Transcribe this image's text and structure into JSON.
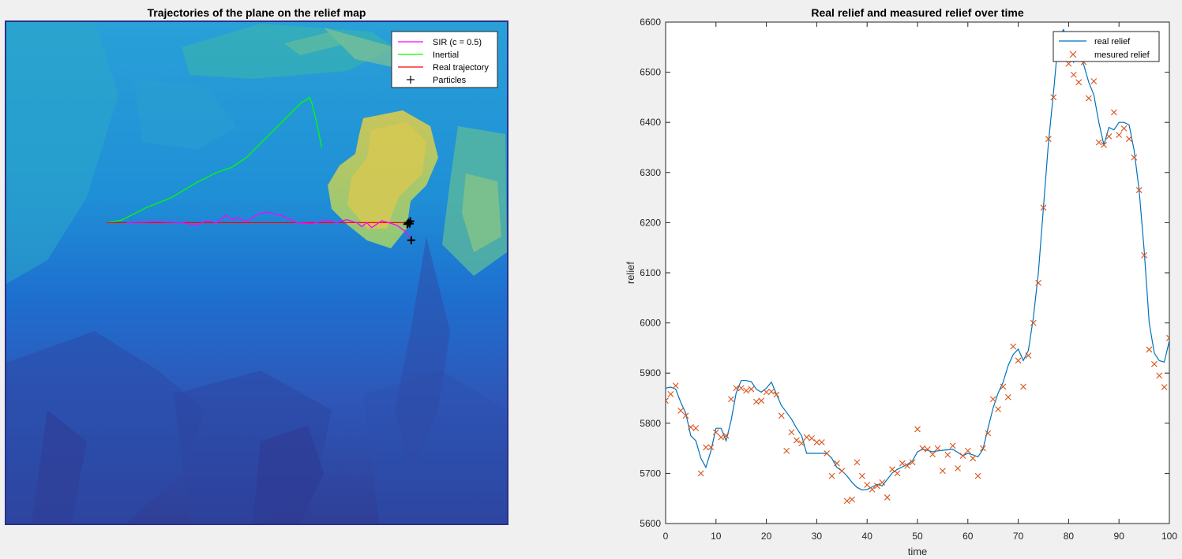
{
  "colors": {
    "figure_bg": "#f0f0f0",
    "sir": "#ff00ff",
    "inertial": "#00ff00",
    "real_trajectory": "#ff0000",
    "particles": "#000000",
    "real_relief": "#0072bd",
    "measured_relief": "#d95319",
    "map_low": "#2b318a",
    "map_mid": "#1a9ad6",
    "map_high": "#d9c94a"
  },
  "chart_data": [
    {
      "type": "map",
      "title": "Trajectories of the plane on the relief map",
      "legend": {
        "placement": "top-right",
        "entries": [
          {
            "label": "SIR (c = 0.5)",
            "marker": "line",
            "color": "#ff00ff"
          },
          {
            "label": "Inertial",
            "marker": "line",
            "color": "#00ff00"
          },
          {
            "label": "Real trajectory",
            "marker": "line",
            "color": "#ff0000"
          },
          {
            "label": "Particles",
            "marker": "+",
            "color": "#000000"
          }
        ]
      },
      "series": [
        {
          "name": "Real trajectory",
          "x": [
            0.2,
            0.805
          ],
          "y": [
            0.4,
            0.4
          ]
        },
        {
          "name": "Inertial",
          "x": [
            0.2,
            0.23,
            0.28,
            0.33,
            0.38,
            0.42,
            0.45,
            0.48,
            0.51,
            0.54,
            0.57,
            0.58,
            0.59,
            0.6,
            0.605,
            0.61,
            0.62,
            0.63
          ],
          "y": [
            0.4,
            0.395,
            0.37,
            0.35,
            0.32,
            0.3,
            0.29,
            0.27,
            0.24,
            0.21,
            0.18,
            0.17,
            0.16,
            0.155,
            0.15,
            0.16,
            0.2,
            0.25
          ]
        },
        {
          "name": "SIR (c = 0.5)",
          "x": [
            0.24,
            0.3,
            0.35,
            0.38,
            0.4,
            0.42,
            0.44,
            0.45,
            0.46,
            0.48,
            0.5,
            0.52,
            0.55,
            0.58,
            0.61,
            0.64,
            0.66,
            0.68,
            0.7,
            0.71,
            0.72,
            0.73,
            0.75,
            0.78,
            0.8,
            0.805
          ],
          "y": [
            0.4,
            0.398,
            0.4,
            0.405,
            0.396,
            0.4,
            0.385,
            0.395,
            0.39,
            0.398,
            0.384,
            0.379,
            0.386,
            0.4,
            0.402,
            0.395,
            0.4,
            0.394,
            0.4,
            0.408,
            0.4,
            0.41,
            0.396,
            0.405,
            0.42,
            0.43
          ]
        },
        {
          "name": "Particles",
          "x": [
            0.803,
            0.807,
            0.801,
            0.806,
            0.809
          ],
          "y": [
            0.4,
            0.397,
            0.403,
            0.402,
            0.435
          ]
        }
      ]
    },
    {
      "type": "line",
      "title": "Real relief and measured relief over time",
      "xlabel": "time",
      "ylabel": "relief",
      "xlim": [
        0,
        100
      ],
      "ylim": [
        5600,
        6600
      ],
      "xticks": [
        0,
        10,
        20,
        30,
        40,
        50,
        60,
        70,
        80,
        90,
        100
      ],
      "yticks": [
        5600,
        5700,
        5800,
        5900,
        6000,
        6100,
        6200,
        6300,
        6400,
        6500,
        6600
      ],
      "legend": {
        "placement": "top-right",
        "entries": [
          {
            "label": "real relief",
            "marker": "line",
            "color": "#0072bd"
          },
          {
            "label": "mesured relief",
            "marker": "x",
            "color": "#d95319"
          }
        ]
      },
      "series": [
        {
          "name": "real relief",
          "x": [
            0,
            1,
            2,
            3,
            4,
            5,
            6,
            7,
            8,
            9,
            10,
            11,
            12,
            13,
            14,
            15,
            16,
            17,
            18,
            19,
            20,
            21,
            22,
            23,
            24,
            25,
            26,
            27,
            28,
            29,
            30,
            31,
            32,
            33,
            34,
            35,
            36,
            37,
            38,
            39,
            40,
            41,
            42,
            43,
            44,
            45,
            46,
            47,
            48,
            49,
            50,
            51,
            52,
            53,
            54,
            55,
            56,
            57,
            58,
            59,
            60,
            61,
            62,
            63,
            64,
            65,
            66,
            67,
            68,
            69,
            70,
            71,
            72,
            73,
            74,
            75,
            76,
            77,
            78,
            79,
            80,
            81,
            82,
            83,
            84,
            85,
            86,
            87,
            88,
            89,
            90,
            91,
            92,
            93,
            94,
            95,
            96,
            97,
            98,
            99,
            100
          ],
          "y": [
            5870,
            5872,
            5868,
            5842,
            5820,
            5775,
            5765,
            5730,
            5712,
            5745,
            5790,
            5790,
            5765,
            5805,
            5860,
            5885,
            5885,
            5883,
            5868,
            5862,
            5870,
            5882,
            5858,
            5835,
            5822,
            5808,
            5790,
            5775,
            5740,
            5740,
            5740,
            5740,
            5740,
            5730,
            5712,
            5705,
            5695,
            5682,
            5672,
            5667,
            5668,
            5673,
            5678,
            5675,
            5688,
            5701,
            5708,
            5713,
            5718,
            5725,
            5743,
            5748,
            5746,
            5743,
            5745,
            5746,
            5747,
            5748,
            5742,
            5735,
            5740,
            5737,
            5733,
            5748,
            5790,
            5830,
            5860,
            5882,
            5915,
            5937,
            5948,
            5925,
            5945,
            6010,
            6100,
            6230,
            6360,
            6460,
            6570,
            6585,
            6555,
            6520,
            6540,
            6515,
            6480,
            6455,
            6400,
            6355,
            6390,
            6385,
            6400,
            6400,
            6395,
            6345,
            6265,
            6145,
            6000,
            5940,
            5925,
            5922,
            5965
          ]
        },
        {
          "name": "mesured relief",
          "x": [
            0,
            1,
            2,
            3,
            4,
            5,
            6,
            7,
            8,
            9,
            10,
            11,
            12,
            13,
            14,
            15,
            16,
            17,
            18,
            19,
            20,
            21,
            22,
            23,
            24,
            25,
            26,
            27,
            28,
            29,
            30,
            31,
            32,
            33,
            34,
            35,
            36,
            37,
            38,
            39,
            40,
            41,
            42,
            43,
            44,
            45,
            46,
            47,
            48,
            49,
            50,
            51,
            52,
            53,
            54,
            55,
            56,
            57,
            58,
            59,
            60,
            61,
            62,
            63,
            64,
            65,
            66,
            67,
            68,
            69,
            70,
            71,
            72,
            73,
            74,
            75,
            76,
            77,
            78,
            79,
            80,
            81,
            82,
            83,
            84,
            85,
            86,
            87,
            88,
            89,
            90,
            91,
            92,
            93,
            94,
            95,
            96,
            97,
            98,
            99,
            100
          ],
          "y": [
            5845,
            5858,
            5875,
            5825,
            5815,
            5792,
            5790,
            5700,
            5752,
            5752,
            5782,
            5772,
            5775,
            5848,
            5870,
            5870,
            5865,
            5868,
            5843,
            5845,
            5862,
            5863,
            5857,
            5815,
            5745,
            5782,
            5766,
            5760,
            5772,
            5770,
            5762,
            5762,
            5740,
            5695,
            5720,
            5705,
            5645,
            5648,
            5722,
            5695,
            5677,
            5668,
            5675,
            5682,
            5652,
            5708,
            5700,
            5720,
            5715,
            5722,
            5788,
            5750,
            5748,
            5738,
            5750,
            5705,
            5737,
            5755,
            5710,
            5735,
            5745,
            5730,
            5695,
            5750,
            5780,
            5848,
            5828,
            5873,
            5852,
            5953,
            5925,
            5873,
            5935,
            6000,
            6080,
            6230,
            6367,
            6450,
            6560,
            6545,
            6517,
            6495,
            6480,
            6520,
            6448,
            6482,
            6360,
            6355,
            6372,
            6420,
            6375,
            6388,
            6367,
            6330,
            6265,
            6135,
            5947,
            5918,
            5895,
            5872,
            5970
          ]
        }
      ]
    }
  ]
}
